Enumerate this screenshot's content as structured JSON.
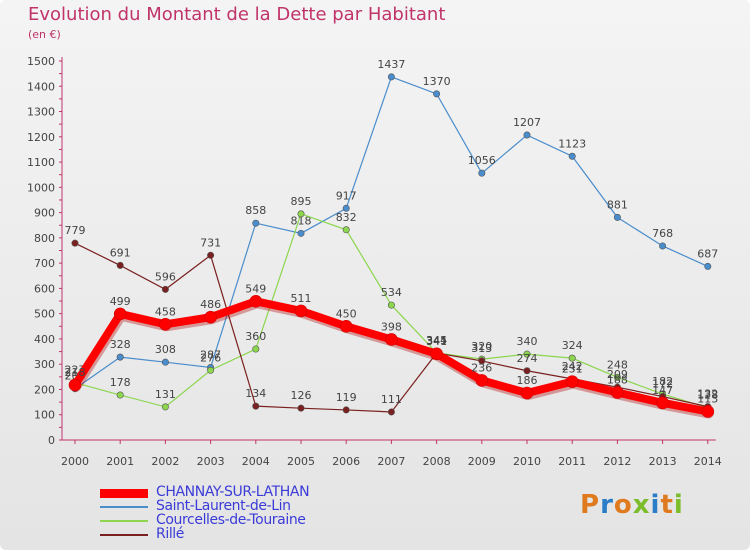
{
  "title": "Evolution du Montant de la Dette par Habitant",
  "subtitle": "(en €)",
  "logo": {
    "text": "Proxiti",
    "colors": [
      "#e07a1f",
      "#2b7dc8",
      "#e07a1f",
      "#7bbd2b",
      "#2b7dc8",
      "#e07a1f",
      "#7bbd2b"
    ]
  },
  "chart_data": {
    "type": "line",
    "title": "Evolution du Montant de la Dette par Habitant",
    "ylabel": "(en €)",
    "x": [
      "2000",
      "2001",
      "2002",
      "2003",
      "2004",
      "2005",
      "2006",
      "2007",
      "2008",
      "2009",
      "2010",
      "2011",
      "2012",
      "2013",
      "2014"
    ],
    "ylim": [
      0,
      1500
    ],
    "yticks": [
      0,
      100,
      200,
      300,
      400,
      500,
      600,
      700,
      800,
      900,
      1000,
      1100,
      1200,
      1300,
      1400,
      1500
    ],
    "grid": false,
    "legend_position": "bottom-left",
    "series": [
      {
        "name": "CHANNAY-SUR-LATHAN",
        "color": "#ff0000",
        "values": [
          218,
          499,
          458,
          486,
          549,
          511,
          450,
          398,
          341,
          236,
          186,
          231,
          188,
          147,
          113
        ]
      },
      {
        "name": "Saint-Laurent-de-Lin",
        "color": "#4a8dcc",
        "values": [
          203,
          328,
          308,
          287,
          858,
          818,
          917,
          1437,
          1370,
          1056,
          1207,
          1123,
          881,
          768,
          687
        ]
      },
      {
        "name": "Courcelles-de-Touraine",
        "color": "#8cd64e",
        "values": [
          227,
          178,
          131,
          276,
          360,
          895,
          832,
          534,
          345,
          320,
          340,
          324,
          248,
          182,
          128
        ]
      },
      {
        "name": "Rillé",
        "color": "#7a2020",
        "values": [
          779,
          691,
          596,
          731,
          134,
          126,
          119,
          111,
          344,
          313,
          274,
          242,
          209,
          172,
          132
        ]
      }
    ]
  }
}
